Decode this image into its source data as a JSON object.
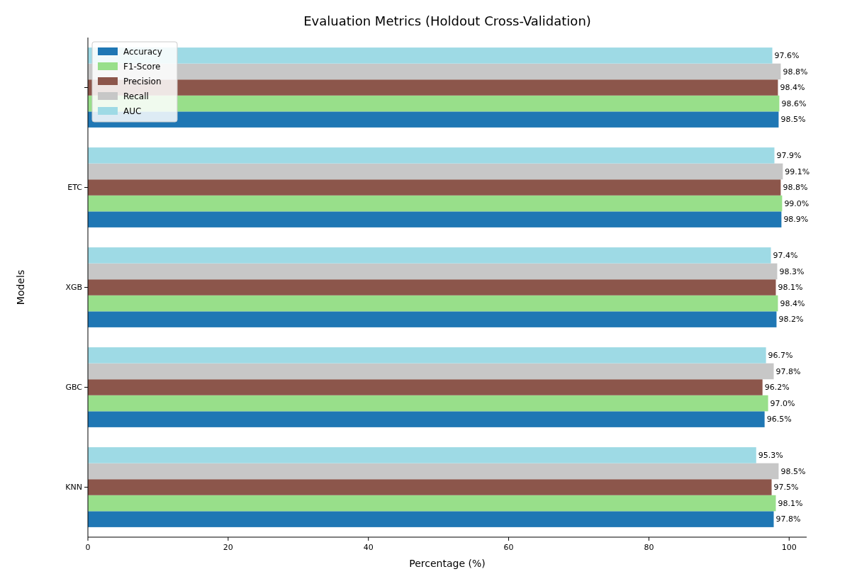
{
  "chart_data": {
    "type": "bar",
    "orientation": "horizontal",
    "title": "Evaluation Metrics (Holdout Cross-Validation)",
    "xlabel": "Percentage (%)",
    "ylabel": "Models",
    "categories": [
      null,
      "ETC",
      "XGB",
      "GBC",
      "KNN"
    ],
    "xlim": [
      0,
      102.5
    ],
    "xticks": [
      0,
      20,
      40,
      60,
      80,
      100
    ],
    "grid": false,
    "legend": "top left",
    "series": [
      {
        "name": "Accuracy",
        "color": "#1f77b4",
        "values": [
          98.5,
          98.9,
          98.2,
          96.5,
          97.8
        ],
        "value_labels": [
          "98.5%",
          "98.9%",
          "98.2%",
          "96.5%",
          "97.8%"
        ]
      },
      {
        "name": "F1-Score",
        "color": "#98df8a",
        "values": [
          98.6,
          99.0,
          98.4,
          97.0,
          98.1
        ],
        "value_labels": [
          "98.6%",
          "99.0%",
          "98.4%",
          "97.0%",
          "98.1%"
        ]
      },
      {
        "name": "Precision",
        "color": "#8c564b",
        "values": [
          98.4,
          98.8,
          98.1,
          96.2,
          97.5
        ],
        "value_labels": [
          "98.4%",
          "98.8%",
          "98.1%",
          "96.2%",
          "97.5%"
        ]
      },
      {
        "name": "Recall",
        "color": "#c7c7c7",
        "values": [
          98.8,
          99.1,
          98.3,
          97.8,
          98.5
        ],
        "value_labels": [
          "98.8%",
          "99.1%",
          "98.3%",
          "97.8%",
          "98.5%"
        ]
      },
      {
        "name": "AUC",
        "color": "#9edae5",
        "values": [
          97.6,
          97.9,
          97.4,
          96.7,
          95.3
        ],
        "value_labels": [
          "97.6%",
          "97.9%",
          "97.4%",
          "96.7%",
          "95.3%"
        ]
      }
    ]
  }
}
